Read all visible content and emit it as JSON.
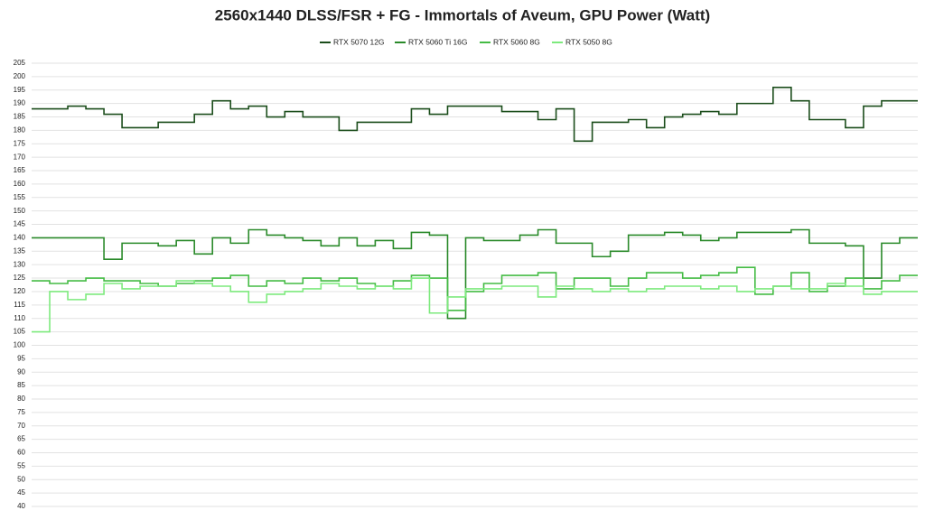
{
  "chart_data": {
    "type": "step-line",
    "title": "2560x1440 DLSS/FSR + FG - Immortals of Aveum, GPU Power (Watt)",
    "ylim": [
      40,
      205
    ],
    "yticks": [
      40,
      45,
      50,
      55,
      60,
      65,
      70,
      75,
      80,
      85,
      90,
      95,
      100,
      105,
      110,
      115,
      120,
      125,
      130,
      135,
      140,
      145,
      150,
      155,
      160,
      165,
      170,
      175,
      180,
      185,
      190,
      195,
      200,
      205
    ],
    "grid": true,
    "series": [
      {
        "name": "RTX 5070 12G",
        "color": "#1b4d1b",
        "values": [
          188,
          188,
          189,
          188,
          186,
          181,
          181,
          183,
          183,
          186,
          191,
          188,
          189,
          185,
          187,
          185,
          185,
          180,
          183,
          183,
          183,
          188,
          186,
          189,
          189,
          189,
          187,
          187,
          184,
          188,
          176,
          183,
          183,
          184,
          181,
          185,
          186,
          187,
          186,
          190,
          190,
          196,
          191,
          184,
          184,
          181,
          189,
          191,
          191
        ]
      },
      {
        "name": "RTX 5060 Ti 16G",
        "color": "#2a8a2a",
        "values": [
          140,
          140,
          140,
          140,
          132,
          138,
          138,
          137,
          139,
          134,
          140,
          138,
          143,
          141,
          140,
          139,
          137,
          140,
          137,
          139,
          136,
          142,
          141,
          110,
          140,
          139,
          139,
          141,
          143,
          138,
          138,
          133,
          135,
          141,
          141,
          142,
          141,
          139,
          140,
          142,
          142,
          142,
          143,
          138,
          138,
          137,
          125,
          138,
          140
        ]
      },
      {
        "name": "RTX 5060 8G",
        "color": "#44bb44",
        "values": [
          124,
          123,
          124,
          125,
          124,
          124,
          123,
          122,
          123,
          124,
          125,
          126,
          122,
          124,
          123,
          125,
          124,
          125,
          123,
          122,
          124,
          126,
          125,
          113,
          120,
          123,
          126,
          126,
          127,
          121,
          125,
          125,
          122,
          125,
          127,
          127,
          125,
          126,
          127,
          129,
          119,
          122,
          127,
          120,
          122,
          125,
          121,
          124,
          126
        ]
      },
      {
        "name": "RTX 5050 8G",
        "color": "#7dea7d",
        "values": [
          105,
          120,
          117,
          119,
          123,
          121,
          122,
          122,
          124,
          123,
          122,
          120,
          116,
          119,
          120,
          121,
          123,
          122,
          121,
          122,
          121,
          125,
          112,
          118,
          121,
          121,
          122,
          122,
          118,
          122,
          121,
          120,
          121,
          120,
          121,
          122,
          122,
          121,
          122,
          120,
          121,
          122,
          121,
          121,
          123,
          122,
          119,
          120,
          120
        ]
      }
    ]
  }
}
